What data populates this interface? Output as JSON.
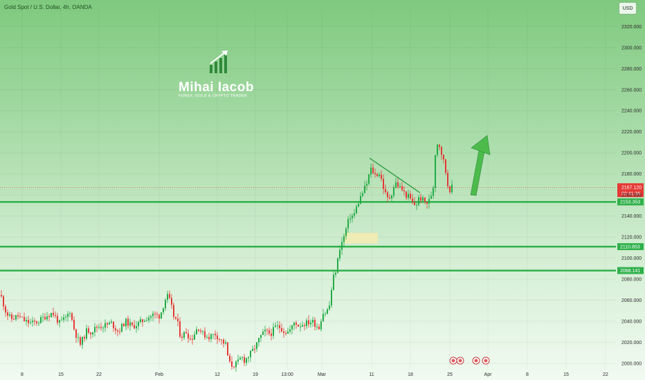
{
  "header": {
    "symbol_title": "Gold Spot / U.S. Dollar, 4h, OANDA",
    "currency_button": "USD"
  },
  "watermark": {
    "name": "Mihai Iacob",
    "tagline": "FOREX, GOLD & CRYPTO TRADER"
  },
  "colors": {
    "up": "#22ab46",
    "down": "#e53935",
    "level_line": "#2eb04a",
    "zone": "#f5ecb0",
    "arrow": "#4cbb4c"
  },
  "chart_data": {
    "type": "candlestick",
    "title": "Gold Spot / U.S. Dollar, 4h, OANDA",
    "x_tick_labels": [
      "8",
      "15",
      "22",
      "Feb",
      "12",
      "19",
      "13:00",
      "Mar",
      "11",
      "18",
      "25",
      "Apr",
      "8",
      "15",
      "22"
    ],
    "y_tick_labels": [
      "2000.000",
      "2020.000",
      "2040.000",
      "2060.000",
      "2080.000",
      "2100.000",
      "2120.000",
      "2140.000",
      "2160.000",
      "2180.000",
      "2200.000",
      "2220.000",
      "2240.000",
      "2260.000",
      "2280.000",
      "2300.000",
      "2320.000"
    ],
    "ylim": [
      1994,
      2336
    ],
    "current_price": {
      "value": "2167.120",
      "countdown": "02:41:36"
    },
    "levels": [
      "2153.353",
      "2110.853",
      "2088.141"
    ],
    "price_path": [
      [
        0,
        2065
      ],
      [
        8,
        2048
      ],
      [
        15,
        2042
      ],
      [
        25,
        2045
      ],
      [
        35,
        2040
      ],
      [
        45,
        2038
      ],
      [
        55,
        2040
      ],
      [
        65,
        2045
      ],
      [
        75,
        2048
      ],
      [
        85,
        2038
      ],
      [
        95,
        2044
      ],
      [
        100,
        2050
      ],
      [
        105,
        2035
      ],
      [
        110,
        2025
      ],
      [
        115,
        2018
      ],
      [
        120,
        2025
      ],
      [
        125,
        2032
      ],
      [
        130,
        2030
      ],
      [
        140,
        2035
      ],
      [
        150,
        2036
      ],
      [
        160,
        2038
      ],
      [
        170,
        2030
      ],
      [
        180,
        2040
      ],
      [
        190,
        2035
      ],
      [
        200,
        2038
      ],
      [
        210,
        2043
      ],
      [
        220,
        2046
      ],
      [
        230,
        2045
      ],
      [
        235,
        2055
      ],
      [
        240,
        2065
      ],
      [
        245,
        2058
      ],
      [
        250,
        2045
      ],
      [
        255,
        2040
      ],
      [
        260,
        2025
      ],
      [
        268,
        2030
      ],
      [
        275,
        2022
      ],
      [
        285,
        2035
      ],
      [
        292,
        2028
      ],
      [
        300,
        2025
      ],
      [
        310,
        2028
      ],
      [
        318,
        2022
      ],
      [
        325,
        2018
      ],
      [
        330,
        2000
      ],
      [
        335,
        1998
      ],
      [
        342,
        2000
      ],
      [
        348,
        2006
      ],
      [
        352,
        2003
      ],
      [
        360,
        2008
      ],
      [
        370,
        2018
      ],
      [
        375,
        2025
      ],
      [
        382,
        2030
      ],
      [
        390,
        2028
      ],
      [
        398,
        2035
      ],
      [
        405,
        2034
      ],
      [
        410,
        2030
      ],
      [
        415,
        2030
      ],
      [
        420,
        2033
      ],
      [
        425,
        2040
      ],
      [
        430,
        2036
      ],
      [
        440,
        2038
      ],
      [
        450,
        2040
      ],
      [
        460,
        2034
      ],
      [
        465,
        2048
      ],
      [
        470,
        2048
      ],
      [
        475,
        2055
      ],
      [
        480,
        2080
      ],
      [
        485,
        2090
      ],
      [
        490,
        2110
      ],
      [
        495,
        2118
      ],
      [
        500,
        2130
      ],
      [
        505,
        2140
      ],
      [
        510,
        2140
      ],
      [
        515,
        2150
      ],
      [
        520,
        2158
      ],
      [
        525,
        2165
      ],
      [
        530,
        2172
      ],
      [
        534,
        2185
      ],
      [
        538,
        2182
      ],
      [
        542,
        2178
      ],
      [
        546,
        2182
      ],
      [
        550,
        2175
      ],
      [
        555,
        2162
      ],
      [
        560,
        2155
      ],
      [
        565,
        2162
      ],
      [
        570,
        2172
      ],
      [
        575,
        2168
      ],
      [
        580,
        2165
      ],
      [
        585,
        2160
      ],
      [
        590,
        2158
      ],
      [
        595,
        2152
      ],
      [
        600,
        2150
      ],
      [
        605,
        2158
      ],
      [
        610,
        2155
      ],
      [
        615,
        2152
      ],
      [
        620,
        2155
      ],
      [
        625,
        2168
      ],
      [
        628,
        2200
      ],
      [
        632,
        2212
      ],
      [
        635,
        2205
      ],
      [
        640,
        2192
      ],
      [
        643,
        2182
      ],
      [
        645,
        2172
      ],
      [
        648,
        2165
      ],
      [
        652,
        2167
      ]
    ],
    "trendline": [
      [
        534,
        2195
      ],
      [
        607,
        2162
      ]
    ],
    "demand_zone": {
      "x_from": 498,
      "x_to": 546,
      "price_from": 2114,
      "price_to": 2124
    }
  }
}
